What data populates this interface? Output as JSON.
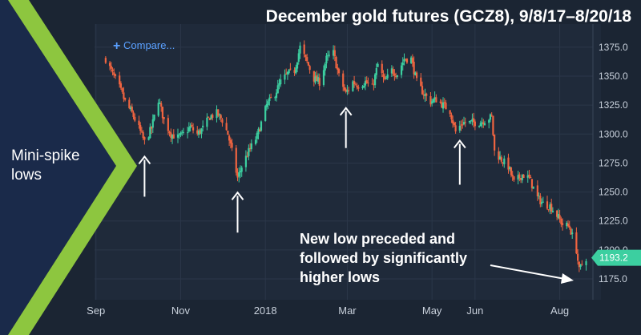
{
  "header": {
    "title": "December gold futures (GCZ8), 9/8/17–8/20/18"
  },
  "toolbar": {
    "compare_label": "Compare..."
  },
  "sidebar": {
    "label_line1": "Mini-spike",
    "label_line2": "lows"
  },
  "annotation": {
    "line1": "New low preceded and",
    "line2": "followed by significantly",
    "line3": "higher lows"
  },
  "colors": {
    "background": "#1b2533",
    "plot_background": "#1f2a3a",
    "panel": "#1a2a4a",
    "chevron": "#8dc63f",
    "up": "#3ccfa0",
    "down": "#f06440",
    "price_badge": "#3ccfa0",
    "compare": "#5aa0ff"
  },
  "icons": {
    "compare": "plus-icon",
    "arrow": "up-arrow-icon"
  },
  "chart_data": {
    "type": "candlestick",
    "title": "December gold futures (GCZ8), 9/8/17–8/20/18",
    "y_ticks": [
      1175,
      1200,
      1225,
      1250,
      1275,
      1300,
      1325,
      1350,
      1375
    ],
    "y_tick_labels": [
      "1175.0",
      "1200.0",
      "1225.0",
      "1250.0",
      "1275.0",
      "1300.0",
      "1325.0",
      "1350.0",
      "1375.0"
    ],
    "ylim": [
      1157,
      1395
    ],
    "x_range": [
      "2017-09-08",
      "2018-08-20"
    ],
    "x_ticks": [
      {
        "date": "2017-09-01",
        "label": "Sep"
      },
      {
        "date": "2017-11-01",
        "label": "Nov"
      },
      {
        "date": "2018-01-01",
        "label": "2018"
      },
      {
        "date": "2018-03-01",
        "label": "Mar"
      },
      {
        "date": "2018-05-01",
        "label": "May"
      },
      {
        "date": "2018-06-01",
        "label": "Jun"
      },
      {
        "date": "2018-08-01",
        "label": "Aug"
      }
    ],
    "grid": true,
    "last_price": 1193.2,
    "last_price_label": "1193.2",
    "arrow_dates": [
      "2017-10-06",
      "2017-12-12",
      "2018-02-28",
      "2018-05-21",
      "2018-08-16"
    ],
    "approx_closes": [
      [
        "2017-09-08",
        1365
      ],
      [
        "2017-09-13",
        1352
      ],
      [
        "2017-09-18",
        1340
      ],
      [
        "2017-09-22",
        1328
      ],
      [
        "2017-09-27",
        1318
      ],
      [
        "2017-10-02",
        1305
      ],
      [
        "2017-10-06",
        1293
      ],
      [
        "2017-10-11",
        1305
      ],
      [
        "2017-10-16",
        1330
      ],
      [
        "2017-10-20",
        1312
      ],
      [
        "2017-10-25",
        1300
      ],
      [
        "2017-10-30",
        1297
      ],
      [
        "2017-11-03",
        1300
      ],
      [
        "2017-11-08",
        1306
      ],
      [
        "2017-11-13",
        1300
      ],
      [
        "2017-11-17",
        1305
      ],
      [
        "2017-11-22",
        1315
      ],
      [
        "2017-11-27",
        1318
      ],
      [
        "2017-12-01",
        1312
      ],
      [
        "2017-12-05",
        1300
      ],
      [
        "2017-12-08",
        1285
      ],
      [
        "2017-12-12",
        1262
      ],
      [
        "2017-12-15",
        1272
      ],
      [
        "2017-12-20",
        1285
      ],
      [
        "2017-12-26",
        1298
      ],
      [
        "2018-01-02",
        1325
      ],
      [
        "2018-01-08",
        1335
      ],
      [
        "2018-01-12",
        1345
      ],
      [
        "2018-01-17",
        1352
      ],
      [
        "2018-01-22",
        1355
      ],
      [
        "2018-01-26",
        1375
      ],
      [
        "2018-01-31",
        1362
      ],
      [
        "2018-02-05",
        1348
      ],
      [
        "2018-02-09",
        1345
      ],
      [
        "2018-02-14",
        1365
      ],
      [
        "2018-02-19",
        1370
      ],
      [
        "2018-02-23",
        1350
      ],
      [
        "2018-02-28",
        1335
      ],
      [
        "2018-03-05",
        1345
      ],
      [
        "2018-03-09",
        1342
      ],
      [
        "2018-03-14",
        1345
      ],
      [
        "2018-03-19",
        1340
      ],
      [
        "2018-03-23",
        1360
      ],
      [
        "2018-03-28",
        1345
      ],
      [
        "2018-04-02",
        1355
      ],
      [
        "2018-04-06",
        1352
      ],
      [
        "2018-04-11",
        1365
      ],
      [
        "2018-04-16",
        1365
      ],
      [
        "2018-04-20",
        1345
      ],
      [
        "2018-04-25",
        1335
      ],
      [
        "2018-04-30",
        1328
      ],
      [
        "2018-05-04",
        1330
      ],
      [
        "2018-05-09",
        1325
      ],
      [
        "2018-05-14",
        1320
      ],
      [
        "2018-05-18",
        1302
      ],
      [
        "2018-05-23",
        1310
      ],
      [
        "2018-05-29",
        1310
      ],
      [
        "2018-06-04",
        1310
      ],
      [
        "2018-06-08",
        1312
      ],
      [
        "2018-06-13",
        1315
      ],
      [
        "2018-06-15",
        1285
      ],
      [
        "2018-06-20",
        1278
      ],
      [
        "2018-06-25",
        1272
      ],
      [
        "2018-06-29",
        1258
      ],
      [
        "2018-07-05",
        1265
      ],
      [
        "2018-07-10",
        1262
      ],
      [
        "2018-07-16",
        1245
      ],
      [
        "2018-07-20",
        1240
      ],
      [
        "2018-07-25",
        1238
      ],
      [
        "2018-07-30",
        1230
      ],
      [
        "2018-08-03",
        1222
      ],
      [
        "2018-08-08",
        1220
      ],
      [
        "2018-08-13",
        1200
      ],
      [
        "2018-08-15",
        1182
      ],
      [
        "2018-08-17",
        1188
      ],
      [
        "2018-08-20",
        1193.2
      ]
    ]
  }
}
